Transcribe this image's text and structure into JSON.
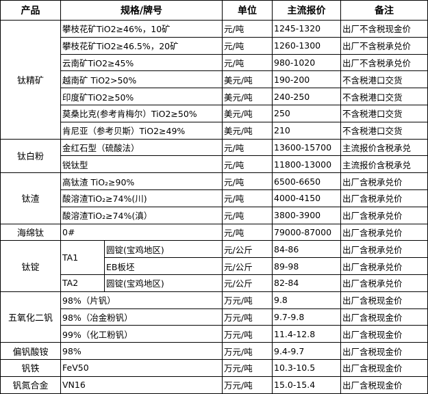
{
  "headers": [
    "产品",
    "规格/牌号",
    "单位",
    "主流报价",
    "备注"
  ],
  "groups": [
    {
      "product": "钛精矿",
      "rows": [
        {
          "spec": "攀枝花矿TiO2≥46%，10矿",
          "unit": "元/吨",
          "price": "1245-1320",
          "note": "出厂不含税现金价"
        },
        {
          "spec": "攀枝花矿TiO2≥46.5%，20矿",
          "unit": "元/吨",
          "price": "1260-1300",
          "note": "出厂不含税承兑价"
        },
        {
          "spec": "云南矿TiO2≥45%",
          "unit": "元/吨",
          "price": "980-1020",
          "note": "出厂不含税承兑价"
        },
        {
          "spec": "越南矿 TiO2>50%",
          "unit": "美元/吨",
          "price": "190-200",
          "note": "不含税港口交货"
        },
        {
          "spec": "印度矿TiO2≥50%",
          "unit": "美元/吨",
          "price": "240-250",
          "note": "不含税港口交货"
        },
        {
          "spec": "莫桑比克(参考肯梅尔）TiO2≥50%",
          "unit": "美元/吨",
          "price": "250",
          "note": "不含税港口交货"
        },
        {
          "spec": "肯尼亚（参考贝斯）TiO2≥49%",
          "unit": "美元/吨",
          "price": "210",
          "note": "不含税港口交货"
        }
      ]
    },
    {
      "product": "钛白粉",
      "rows": [
        {
          "spec": "金红石型（硫酸法）",
          "unit": "元/吨",
          "price": "13600-15700",
          "note": "主流报价含税承兑"
        },
        {
          "spec": "锐钛型",
          "unit": "元/吨",
          "price": "11800-13000",
          "note": "主流报价含税承兑"
        }
      ]
    },
    {
      "product": "钛渣",
      "rows": [
        {
          "spec": "高钛渣 TiO₂≥90%",
          "unit": "元/吨",
          "price": "6500-6650",
          "note": "出厂含税承兑价"
        },
        {
          "spec": "酸溶渣TiO₂≥74%(川)",
          "unit": "元/吨",
          "price": "4000-4150",
          "note": "出厂含税承兑价"
        },
        {
          "spec": "酸溶渣TiO₂≥74%(滇）",
          "unit": "元/吨",
          "price": "3800-3900",
          "note": "出厂含税承兑价"
        }
      ]
    },
    {
      "product": "海绵钛",
      "rows": [
        {
          "spec": "0#",
          "unit": "元/吨",
          "price": "79000-87000",
          "note": "出厂含税承兑价"
        }
      ]
    },
    {
      "product": "钛锭",
      "rows": [
        {
          "grade": "TA1",
          "grade_span": 2,
          "spec": "圆锭(宝鸡地区)",
          "unit": "元/公斤",
          "price": "84-86",
          "note": "出厂含税承兑价"
        },
        {
          "spec": "EB板坯",
          "unit": "元/公斤",
          "price": "89-98",
          "note": "出厂含税承兑价"
        },
        {
          "grade": "TA2",
          "grade_span": 1,
          "spec": "圆锭(宝鸡地区)",
          "unit": "元/公斤",
          "price": "82-84",
          "note": "出厂含税承兑价"
        }
      ]
    },
    {
      "product": "五氧化二钒",
      "rows": [
        {
          "spec": "98%（片钒）",
          "unit": "万元/吨",
          "price": "9.8",
          "note": "出厂含税现金价"
        },
        {
          "spec": "98%（冶金粉钒）",
          "unit": "万元/吨",
          "price": "9.7-9.8",
          "note": "出厂含税现金价"
        },
        {
          "spec": "99%（化工粉钒）",
          "unit": "万元/吨",
          "price": "11.4-12.8",
          "note": "出厂含税现金价"
        }
      ]
    },
    {
      "product": "偏钒酸铵",
      "rows": [
        {
          "spec": "98%",
          "unit": "万元/吨",
          "price": "9.4-9.7",
          "note": "出厂含税现金价"
        }
      ]
    },
    {
      "product": "钒铁",
      "rows": [
        {
          "spec": "FeV50",
          "unit": "万元/吨",
          "price": "10.3-10.5",
          "note": "出厂含税现金价"
        }
      ]
    },
    {
      "product": "钒氮合金",
      "rows": [
        {
          "spec": "VN16",
          "unit": "万元/吨",
          "price": "15.0-15.4",
          "note": "出厂含税现金价"
        }
      ]
    }
  ]
}
